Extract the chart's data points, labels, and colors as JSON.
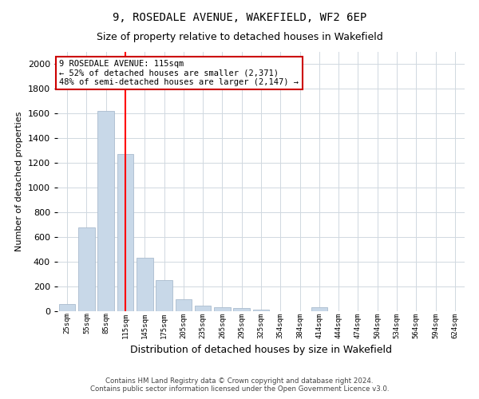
{
  "title1": "9, ROSEDALE AVENUE, WAKEFIELD, WF2 6EP",
  "title2": "Size of property relative to detached houses in Wakefield",
  "xlabel": "Distribution of detached houses by size in Wakefield",
  "ylabel": "Number of detached properties",
  "categories": [
    "25sqm",
    "55sqm",
    "85sqm",
    "115sqm",
    "145sqm",
    "175sqm",
    "205sqm",
    "235sqm",
    "265sqm",
    "295sqm",
    "325sqm",
    "354sqm",
    "384sqm",
    "414sqm",
    "444sqm",
    "474sqm",
    "504sqm",
    "534sqm",
    "564sqm",
    "594sqm",
    "624sqm"
  ],
  "values": [
    60,
    680,
    1620,
    1270,
    430,
    250,
    100,
    45,
    30,
    25,
    10,
    0,
    0,
    30,
    0,
    0,
    0,
    0,
    0,
    0,
    0
  ],
  "bar_color": "#c8d8e8",
  "bar_edgecolor": "#aabcce",
  "redline_index": 3,
  "ylim": [
    0,
    2100
  ],
  "yticks": [
    0,
    200,
    400,
    600,
    800,
    1000,
    1200,
    1400,
    1600,
    1800,
    2000
  ],
  "annotation_text": "9 ROSEDALE AVENUE: 115sqm\n← 52% of detached houses are smaller (2,371)\n48% of semi-detached houses are larger (2,147) →",
  "annotation_box_color": "#ffffff",
  "annotation_box_edgecolor": "#cc0000",
  "footer1": "Contains HM Land Registry data © Crown copyright and database right 2024.",
  "footer2": "Contains public sector information licensed under the Open Government Licence v3.0.",
  "background_color": "#ffffff",
  "grid_color": "#d0d8e0",
  "title1_fontsize": 10,
  "title2_fontsize": 9,
  "xlabel_fontsize": 9,
  "ylabel_fontsize": 8
}
